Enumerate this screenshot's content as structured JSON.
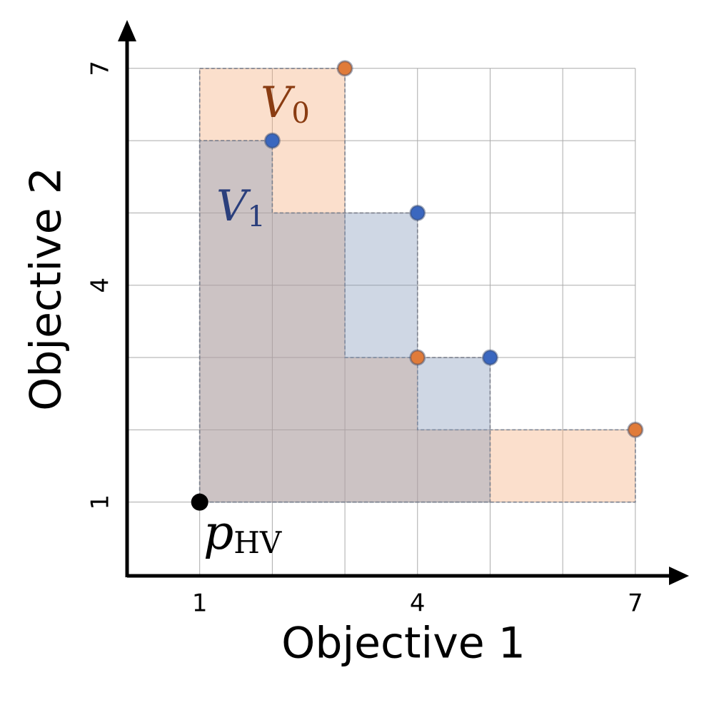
{
  "chart_data": {
    "type": "hypervolume",
    "x_label": "Objective 1",
    "y_label": "Objective 2",
    "xlim": [
      0,
      7.7
    ],
    "ylim": [
      0,
      7.6
    ],
    "xticks": [
      1,
      4,
      7
    ],
    "yticks": [
      1,
      4,
      7
    ],
    "grid_x": [
      1,
      2,
      3,
      4,
      5,
      6,
      7
    ],
    "grid_y": [
      1,
      2,
      3,
      4,
      5,
      6,
      7
    ],
    "grid_extent": [
      0,
      7
    ],
    "reference": {
      "x": 1,
      "y": 1,
      "label": "p",
      "label_sub": "HV",
      "color": "#000000"
    },
    "series": [
      {
        "label": "V",
        "label_sub": "0",
        "label_color": "#8a3c12",
        "color": "#e07b39",
        "fill": "rgba(244,170,120,0.38)",
        "x": [
          3,
          4,
          7
        ],
        "y": [
          7,
          3,
          2
        ]
      },
      {
        "label": "V",
        "label_sub": "1",
        "label_color": "#2b3f7c",
        "color": "#3a67bf",
        "fill": "rgba(130,150,185,0.38)",
        "x": [
          2,
          4,
          5
        ],
        "y": [
          6,
          5,
          3
        ]
      }
    ]
  }
}
